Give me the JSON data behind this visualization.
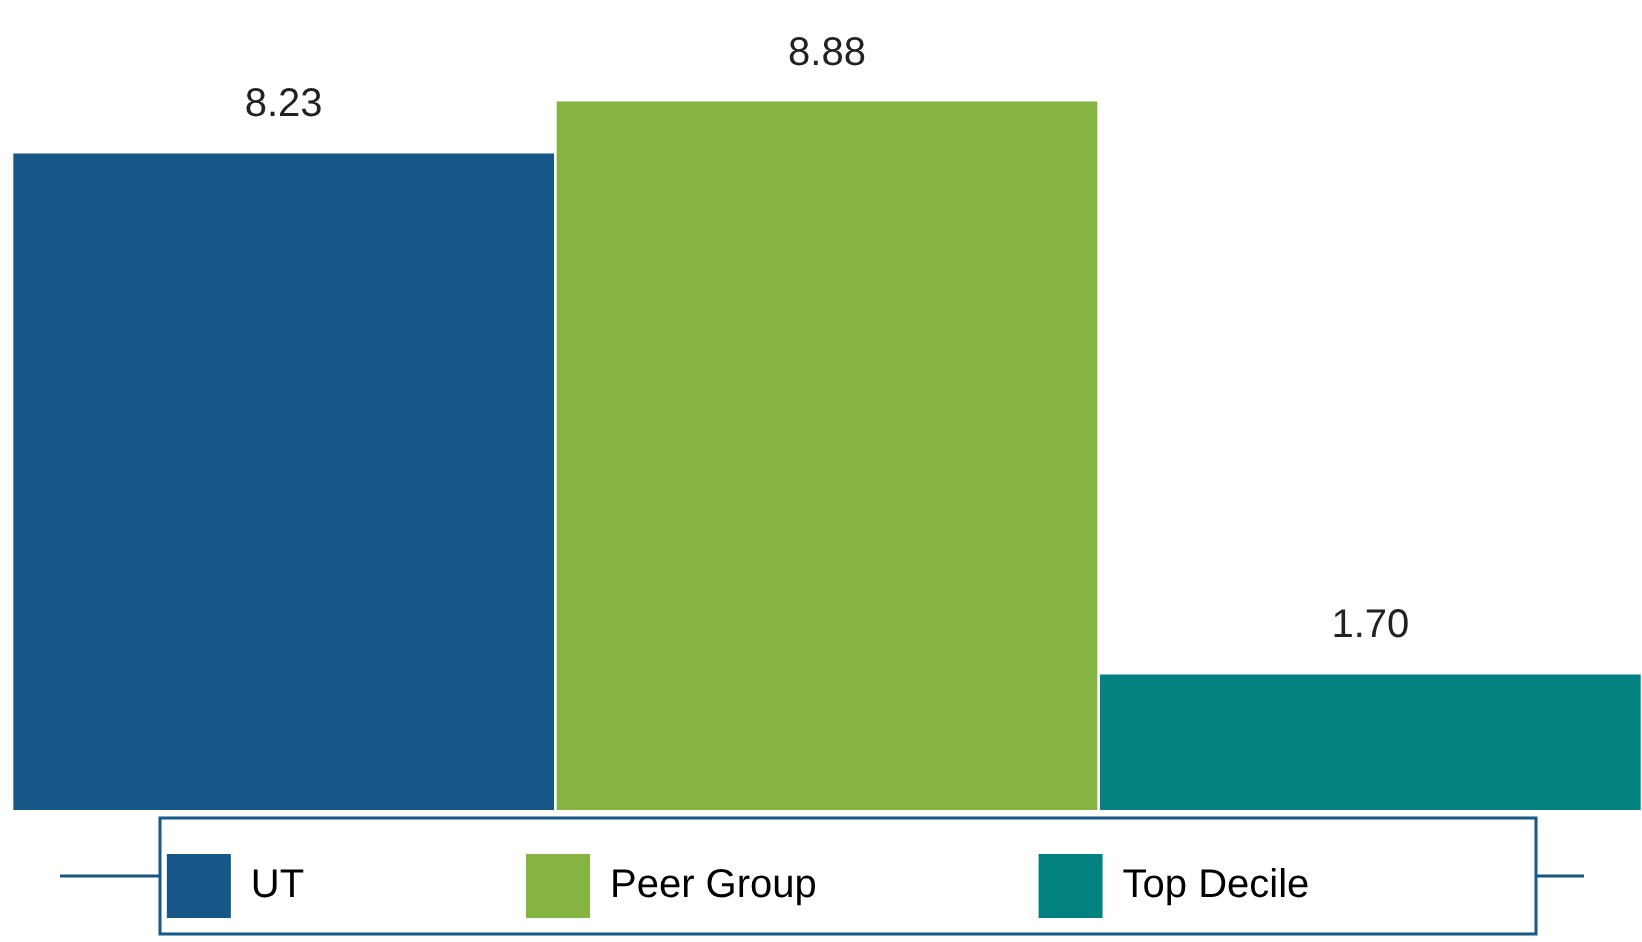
{
  "chart_data": {
    "type": "bar",
    "categories": [
      null
    ],
    "series": [
      {
        "name": "UT",
        "color": "#165788",
        "values": [
          8.23
        ],
        "value_labels": [
          "8.23"
        ]
      },
      {
        "name": "Peer Group",
        "color": "#86b443",
        "values": [
          8.88
        ],
        "value_labels": [
          "8.88"
        ]
      },
      {
        "name": "Top Decile",
        "color": "#038080",
        "values": [
          1.7
        ],
        "value_labels": [
          "1.70"
        ]
      }
    ],
    "legend": "bottom"
  }
}
